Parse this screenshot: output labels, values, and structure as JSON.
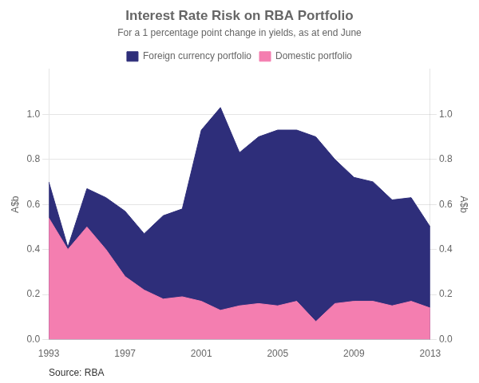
{
  "chart_data": {
    "type": "area",
    "title": "Interest Rate Risk on RBA Portfolio",
    "subtitle": "For a 1 percentage point change in yields, as at end June",
    "ylabel": "A$b",
    "y2label": "A$b",
    "source": "Source: RBA",
    "x": [
      1993,
      1994,
      1995,
      1996,
      1997,
      1998,
      1999,
      2000,
      2001,
      2002,
      2003,
      2004,
      2005,
      2006,
      2007,
      2008,
      2009,
      2010,
      2011,
      2012,
      2013
    ],
    "series": [
      {
        "name": "Foreign currency portfolio",
        "color": "#2e2e7a",
        "values": [
          0.7,
          0.41,
          0.67,
          0.63,
          0.57,
          0.47,
          0.55,
          0.58,
          0.93,
          1.03,
          0.83,
          0.9,
          0.93,
          0.93,
          0.9,
          0.8,
          0.72,
          0.7,
          0.62,
          0.63,
          0.5
        ]
      },
      {
        "name": "Domestic portfolio",
        "color": "#f47eb0",
        "values": [
          0.54,
          0.4,
          0.5,
          0.4,
          0.28,
          0.22,
          0.18,
          0.19,
          0.17,
          0.13,
          0.15,
          0.16,
          0.15,
          0.17,
          0.08,
          0.16,
          0.17,
          0.17,
          0.15,
          0.17,
          0.14
        ]
      }
    ],
    "stacked": false,
    "xlim": [
      1993,
      2013
    ],
    "xticks": [
      1993,
      1997,
      2001,
      2005,
      2009,
      2013
    ],
    "ylim": [
      0.0,
      1.2
    ],
    "yticks": [
      {
        "value": 0.0,
        "label": "0.0"
      },
      0.2,
      0.4,
      0.6,
      0.8,
      {
        "value": 1.0,
        "label": "1.0"
      }
    ],
    "y2lim": [
      0.0,
      1.2
    ],
    "y2ticks": [
      {
        "value": 0.0,
        "label": "0.0"
      },
      0.2,
      0.4,
      0.6,
      0.8,
      {
        "value": 1.0,
        "label": "1.0"
      }
    ],
    "grid": "y",
    "legend": "top"
  }
}
